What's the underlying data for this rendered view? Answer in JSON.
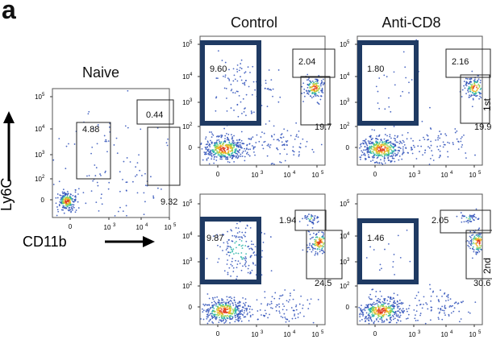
{
  "panel_letter": "a",
  "axis_titles": {
    "y": "Ly6C",
    "x": "CD11b"
  },
  "columns": {
    "naive": "Naive",
    "control": "Control",
    "anti": "Anti-CD8"
  },
  "row_labels": [
    "1st",
    "2nd"
  ],
  "colors": {
    "highlight_box": "#1f3a63",
    "dot": "#2d4fb8",
    "axis": "#333333"
  },
  "chart_data": [
    {
      "type": "scatter",
      "name": "naive",
      "title": "Naive",
      "xlabel": "CD11b",
      "ylabel": "Ly6C",
      "xticks": [
        "0",
        "10^3",
        "10^4",
        "10^5"
      ],
      "yticks": [
        "0",
        "10^2",
        "10^3",
        "10^4",
        "10^5"
      ],
      "gates": [
        {
          "value": "4.88"
        },
        {
          "value": "0.44"
        },
        {
          "value": "9.32"
        }
      ]
    },
    {
      "type": "scatter",
      "name": "control-1st",
      "title": "Control",
      "xticks": [
        "0",
        "10^3",
        "10^4",
        "10^5"
      ],
      "yticks": [
        "0",
        "10^2",
        "10^3",
        "10^4",
        "10^5"
      ],
      "gates": [
        {
          "value": "9.60",
          "highlight": true
        },
        {
          "value": "2.04"
        },
        {
          "value": "19.7"
        }
      ]
    },
    {
      "type": "scatter",
      "name": "anti-1st",
      "title": "Anti-CD8",
      "xticks": [
        "0",
        "10^3",
        "10^4",
        "10^5"
      ],
      "yticks": [
        "0",
        "10^2",
        "10^3",
        "10^4",
        "10^5"
      ],
      "gates": [
        {
          "value": "1.80",
          "highlight": true
        },
        {
          "value": "2.16"
        },
        {
          "value": "19.9"
        }
      ]
    },
    {
      "type": "scatter",
      "name": "control-2nd",
      "xticks": [
        "0",
        "10^3",
        "10^4",
        "10^5"
      ],
      "yticks": [
        "0",
        "10^2",
        "10^3",
        "10^4",
        "10^5"
      ],
      "gates": [
        {
          "value": "9.87",
          "highlight": true
        },
        {
          "value": "1.94"
        },
        {
          "value": "24.5"
        }
      ]
    },
    {
      "type": "scatter",
      "name": "anti-2nd",
      "xticks": [
        "0",
        "10^3",
        "10^4",
        "10^5"
      ],
      "yticks": [
        "0",
        "10^2",
        "10^3",
        "10^4",
        "10^5"
      ],
      "gates": [
        {
          "value": "1.46",
          "highlight": true
        },
        {
          "value": "2.05"
        },
        {
          "value": "30.6"
        }
      ]
    }
  ]
}
